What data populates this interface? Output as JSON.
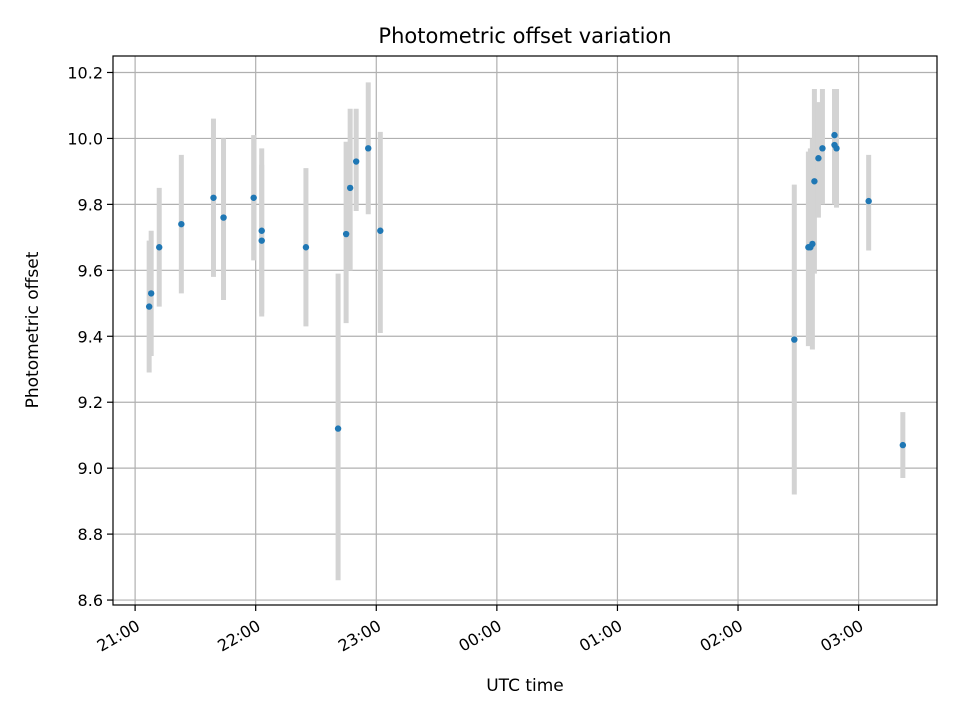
{
  "chart_data": {
    "type": "scatter",
    "title": "Photometric offset variation",
    "xlabel": "UTC time",
    "ylabel": "Photometric offset",
    "xlim": [
      "20:49",
      "03:39"
    ],
    "ylim": [
      8.585,
      10.25
    ],
    "grid": true,
    "x_tick_labels": [
      "21:00",
      "22:00",
      "23:00",
      "00:00",
      "01:00",
      "02:00",
      "03:00"
    ],
    "y_tick_labels": [
      "8.6",
      "8.8",
      "9.0",
      "9.2",
      "9.4",
      "9.6",
      "9.8",
      "10.0",
      "10.2"
    ],
    "errorbar_color": "#d3d3d3",
    "point_color": "#1f77b4",
    "points": [
      {
        "time": "21:07",
        "y": 9.49,
        "low": 9.29,
        "high": 9.69
      },
      {
        "time": "21:08",
        "y": 9.53,
        "low": 9.34,
        "high": 9.72
      },
      {
        "time": "21:12",
        "y": 9.67,
        "low": 9.49,
        "high": 9.85
      },
      {
        "time": "21:23",
        "y": 9.74,
        "low": 9.53,
        "high": 9.95
      },
      {
        "time": "21:39",
        "y": 9.82,
        "low": 9.58,
        "high": 10.06
      },
      {
        "time": "21:44",
        "y": 9.76,
        "low": 9.51,
        "high": 10.0
      },
      {
        "time": "21:59",
        "y": 9.82,
        "low": 9.63,
        "high": 10.01
      },
      {
        "time": "22:03",
        "y": 9.72,
        "low": 9.47,
        "high": 9.97
      },
      {
        "time": "22:03",
        "y": 9.69,
        "low": 9.46,
        "high": 9.92
      },
      {
        "time": "22:25",
        "y": 9.67,
        "low": 9.43,
        "high": 9.91
      },
      {
        "time": "22:41",
        "y": 9.12,
        "low": 8.66,
        "high": 9.59
      },
      {
        "time": "22:45",
        "y": 9.71,
        "low": 9.44,
        "high": 9.99
      },
      {
        "time": "22:47",
        "y": 9.85,
        "low": 9.6,
        "high": 10.09
      },
      {
        "time": "22:50",
        "y": 9.93,
        "low": 9.78,
        "high": 10.09
      },
      {
        "time": "22:56",
        "y": 9.97,
        "low": 9.77,
        "high": 10.17
      },
      {
        "time": "23:02",
        "y": 9.72,
        "low": 9.41,
        "high": 10.02
      },
      {
        "time": "02:28",
        "y": 9.39,
        "low": 8.92,
        "high": 9.86
      },
      {
        "time": "02:35",
        "y": 9.67,
        "low": 9.37,
        "high": 9.96
      },
      {
        "time": "02:36",
        "y": 9.67,
        "low": 9.38,
        "high": 9.97
      },
      {
        "time": "02:37",
        "y": 9.68,
        "low": 9.36,
        "high": 10.0
      },
      {
        "time": "02:38",
        "y": 9.87,
        "low": 9.59,
        "high": 10.15
      },
      {
        "time": "02:40",
        "y": 9.94,
        "low": 9.76,
        "high": 10.11
      },
      {
        "time": "02:42",
        "y": 9.97,
        "low": 9.8,
        "high": 10.15
      },
      {
        "time": "02:48",
        "y": 10.01,
        "low": 9.87,
        "high": 10.15
      },
      {
        "time": "02:48",
        "y": 9.98,
        "low": 9.8,
        "high": 10.15
      },
      {
        "time": "02:49",
        "y": 9.97,
        "low": 9.79,
        "high": 10.15
      },
      {
        "time": "03:05",
        "y": 9.81,
        "low": 9.66,
        "high": 9.95
      },
      {
        "time": "03:22",
        "y": 9.07,
        "low": 8.97,
        "high": 9.17
      }
    ]
  }
}
